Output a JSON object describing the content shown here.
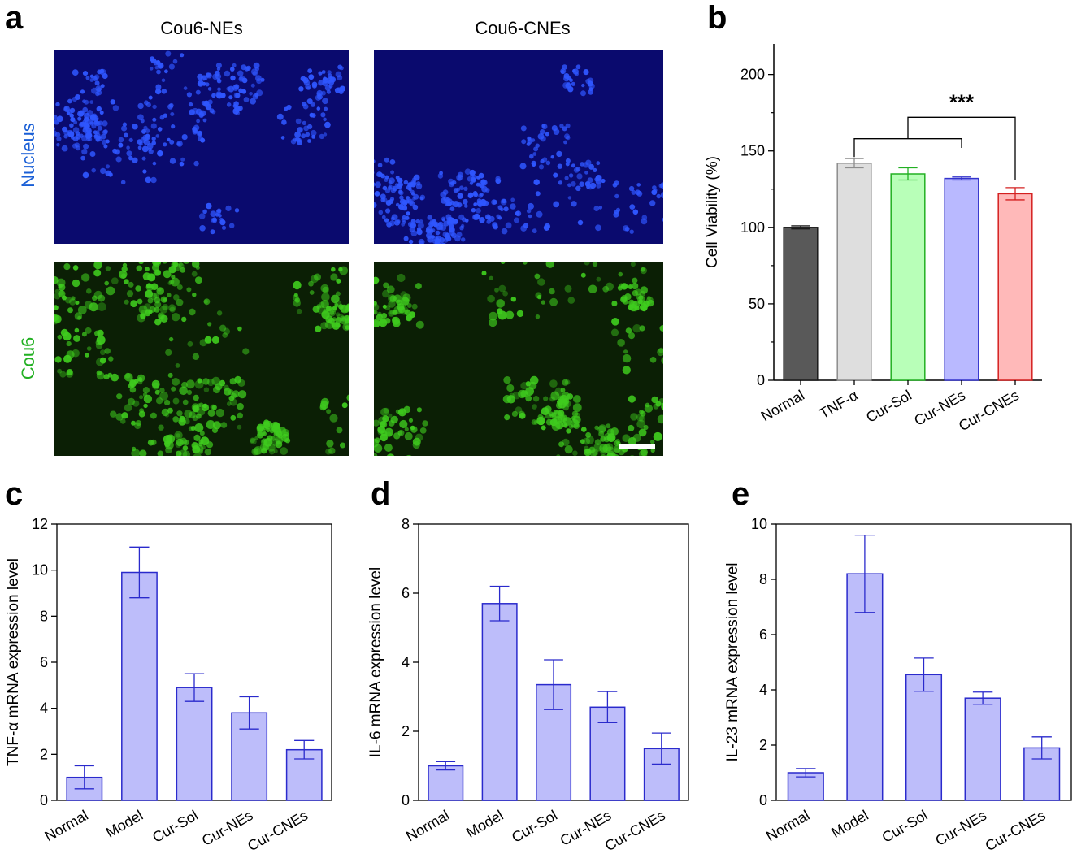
{
  "panels": {
    "a": {
      "letter": "a",
      "col_titles": [
        "Cou6-NEs",
        "Cou6-CNEs"
      ],
      "row_labels": [
        "Nucleus",
        "Cou6"
      ],
      "colors": {
        "nucleus_bg": "#0a0a6e",
        "nucleus_cell": "#2f56ff",
        "cou6_bg": "#0b1f05",
        "cou6_cell": "#3fcc1e"
      }
    },
    "b": {
      "letter": "b"
    },
    "c": {
      "letter": "c"
    },
    "d": {
      "letter": "d"
    },
    "e": {
      "letter": "e"
    }
  },
  "chart_data": [
    {
      "panel": "b",
      "type": "bar",
      "categories": [
        "Normal",
        "TNF-α",
        "Cur-Sol",
        "Cur-NEs",
        "Cur-CNEs"
      ],
      "values": [
        100,
        142,
        135,
        132,
        122
      ],
      "errors": [
        1,
        3,
        4,
        1,
        4
      ],
      "colors": [
        "#595959",
        "#dedede",
        "#b8ffb8",
        "#b9b9ff",
        "#ffb9b9"
      ],
      "edge_colors": [
        "#1a1a1a",
        "#8c8c8c",
        "#22b022",
        "#3333cc",
        "#d42020"
      ],
      "xlabel": "",
      "ylabel": "Cell Viability (%)",
      "ylim": [
        0,
        220
      ],
      "yticks": [
        0,
        50,
        100,
        150,
        200
      ],
      "annotation": "***",
      "grid": false
    },
    {
      "panel": "c",
      "type": "bar",
      "categories": [
        "Normal",
        "Model",
        "Cur-Sol",
        "Cur-NEs",
        "Cur-CNEs"
      ],
      "values": [
        1.0,
        9.9,
        4.9,
        3.8,
        2.2
      ],
      "errors": [
        0.5,
        1.1,
        0.6,
        0.7,
        0.4
      ],
      "xlabel": "",
      "ylabel": "TNF-α mRNA expression level",
      "ylim": [
        0,
        12
      ],
      "yticks": [
        0,
        2,
        4,
        6,
        8,
        10,
        12
      ],
      "grid": false
    },
    {
      "panel": "d",
      "type": "bar",
      "categories": [
        "Normal",
        "Model",
        "Cur-Sol",
        "Cur-NEs",
        "Cur-CNEs"
      ],
      "values": [
        1.0,
        5.7,
        3.35,
        2.7,
        1.5
      ],
      "errors": [
        0.12,
        0.5,
        0.72,
        0.45,
        0.45
      ],
      "xlabel": "",
      "ylabel": "IL-6 mRNA expression level",
      "ylim": [
        0,
        8
      ],
      "yticks": [
        0,
        2,
        4,
        6,
        8
      ],
      "grid": false
    },
    {
      "panel": "e",
      "type": "bar",
      "categories": [
        "Normal",
        "Model",
        "Cur-Sol",
        "Cur-NEs",
        "Cur-CNEs"
      ],
      "values": [
        1.0,
        8.2,
        4.55,
        3.7,
        1.9
      ],
      "errors": [
        0.15,
        1.4,
        0.6,
        0.22,
        0.4
      ],
      "xlabel": "",
      "ylabel": "IL-23 mRNA expression level",
      "ylim": [
        0,
        10
      ],
      "yticks": [
        0,
        2,
        4,
        6,
        8,
        10
      ],
      "grid": false
    }
  ],
  "theme": {
    "bar_fill": "#bdbdfa",
    "bar_edge": "#2a2acc",
    "axis": "#000000"
  }
}
